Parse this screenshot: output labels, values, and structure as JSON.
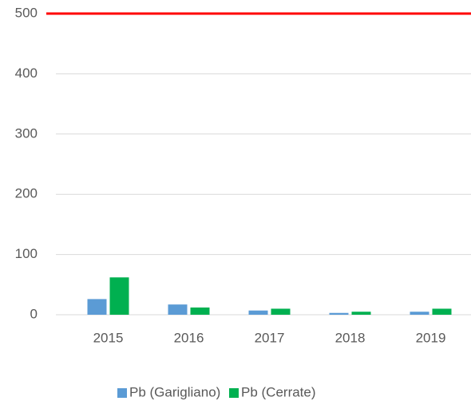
{
  "chart_data": {
    "type": "bar",
    "categories": [
      "2015",
      "2016",
      "2017",
      "2018",
      "2019"
    ],
    "series": [
      {
        "name": "Pb (Garigliano)",
        "color": "#5b9bd5",
        "values": [
          26,
          17,
          7,
          3,
          5
        ]
      },
      {
        "name": "Pb (Cerrate)",
        "color": "#00b050",
        "values": [
          62,
          12,
          10,
          5,
          10
        ]
      }
    ],
    "reference_line": {
      "value": 500,
      "color": "#ff0000"
    },
    "ylim": [
      0,
      500
    ],
    "yticks": [
      0,
      100,
      200,
      300,
      400,
      500
    ],
    "grid": true,
    "legend": "bottom"
  }
}
